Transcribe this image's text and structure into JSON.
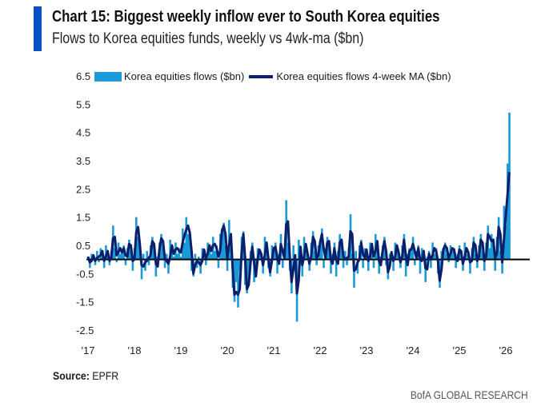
{
  "header": {
    "title": "Chart 15: Biggest weekly inflow ever to South Korea equities",
    "subtitle": "Flows to Korea equities funds, weekly vs 4wk-ma ($bn)"
  },
  "footer": {
    "source_label": "Source:",
    "source_value": "EPFR",
    "brand": "BofA GLOBAL RESEARCH"
  },
  "chart_data": {
    "type": "bar",
    "title": "Chart 15: Biggest weekly inflow ever to South Korea equities",
    "subtitle": "Flows to Korea equities funds, weekly vs 4wk-ma ($bn)",
    "xlabel": "",
    "ylabel": "",
    "ylim": [
      -2.5,
      6.5
    ],
    "yticks": [
      "6.5",
      "5.5",
      "4.5",
      "3.5",
      "2.5",
      "1.5",
      "0.5",
      "-0.5",
      "-1.5",
      "-2.5"
    ],
    "xticks": [
      "'17",
      "'18",
      "'19",
      "'20",
      "'21",
      "'22",
      "'23",
      "'24",
      "'25",
      "'26"
    ],
    "xlim": [
      2017,
      2026.3
    ],
    "grid": false,
    "legend": "top",
    "colors": {
      "flows": "#1a9ad6",
      "ma": "#0a1f6b",
      "zero": "#000000"
    },
    "series": [
      {
        "name": "Korea equities flows ($bn)",
        "type": "bar",
        "start": 2017.0,
        "step_years": 0.03846,
        "values": [
          0.1,
          -0.3,
          0.2,
          0.1,
          -0.2,
          0.3,
          -0.1,
          0.4,
          0.2,
          -0.3,
          0.5,
          0.1,
          -0.2,
          0.3,
          1.2,
          0.4,
          -0.1,
          0.6,
          0.2,
          0.3,
          0.5,
          -0.2,
          0.4,
          0.7,
          0.3,
          -0.4,
          0.4,
          1.5,
          0.8,
          0.3,
          -0.7,
          0.2,
          -0.4,
          0.3,
          -0.2,
          0.5,
          0.8,
          0.3,
          -0.6,
          0.1,
          0.6,
          0.9,
          0.4,
          -0.3,
          0.2,
          -0.5,
          0.7,
          0.3,
          0.1,
          0.6,
          0.2,
          0.4,
          0.1,
          1.1,
          0.6,
          1.5,
          0.9,
          1.0,
          -0.4,
          -0.6,
          0.2,
          -0.3,
          0.1,
          -0.5,
          0.4,
          0.3,
          -0.2,
          0.6,
          0.4,
          0.2,
          0.8,
          0.3,
          0.5,
          -0.3,
          0.9,
          1.1,
          1.3,
          0.5,
          -0.4,
          1.4,
          0.4,
          -1.0,
          -1.5,
          -0.8,
          -1.7,
          -0.4,
          0.8,
          1.0,
          -0.9,
          -1.2,
          -0.6,
          0.3,
          0.6,
          -0.8,
          -0.4,
          0.4,
          0.3,
          0.1,
          -0.5,
          0.8,
          0.4,
          -0.3,
          -0.6,
          0.5,
          0.3,
          0.6,
          -0.5,
          0.2,
          0.9,
          -0.3,
          0.4,
          2.1,
          0.6,
          -0.4,
          -1.2,
          0.5,
          -0.2,
          -2.2,
          0.7,
          0.2,
          -0.6,
          0.8,
          0.3,
          0.1,
          -0.4,
          0.6,
          1.0,
          0.3,
          -0.2,
          0.5,
          0.7,
          1.1,
          -0.3,
          0.4,
          0.8,
          0.5,
          -0.5,
          0.2,
          0.6,
          -0.6,
          0.3,
          0.9,
          0.5,
          -0.3,
          0.3,
          -0.2,
          0.4,
          1.6,
          0.2,
          -1.0,
          0.3,
          -0.5,
          0.5,
          0.7,
          -0.3,
          0.4,
          0.3,
          -0.4,
          0.6,
          0.5,
          -0.3,
          0.9,
          0.4,
          -0.5,
          0.1,
          0.5,
          0.8,
          -0.2,
          -0.7,
          0.2,
          0.3,
          -0.4,
          0.6,
          0.4,
          0.1,
          -0.3,
          0.5,
          0.9,
          -0.6,
          0.2,
          0.4,
          0.3,
          0.8,
          -0.2,
          0.3,
          0.5,
          -0.5,
          0.4,
          0.2,
          -0.8,
          0.1,
          0.3,
          -0.3,
          0.6,
          0.2,
          0.4,
          -0.5,
          -1.0,
          0.3,
          0.4,
          0.6,
          0.2,
          -0.1,
          0.5,
          0.3,
          0.4,
          -0.3,
          0.2,
          0.5,
          0.1,
          -0.4,
          0.6,
          0.2,
          0.3,
          -0.5,
          0.4,
          0.8,
          0.2,
          -0.3,
          0.5,
          0.9,
          0.3,
          -0.4,
          0.6,
          1.2,
          0.4,
          0.9,
          0.5,
          -0.4,
          0.8,
          1.5,
          0.3,
          -0.5,
          1.9,
          1.2,
          3.4,
          5.2
        ]
      },
      {
        "name": "Korea equities flows 4-week MA ($bn)",
        "type": "line",
        "derived_from": "Korea equities flows ($bn)",
        "window_weeks": 4
      }
    ]
  }
}
